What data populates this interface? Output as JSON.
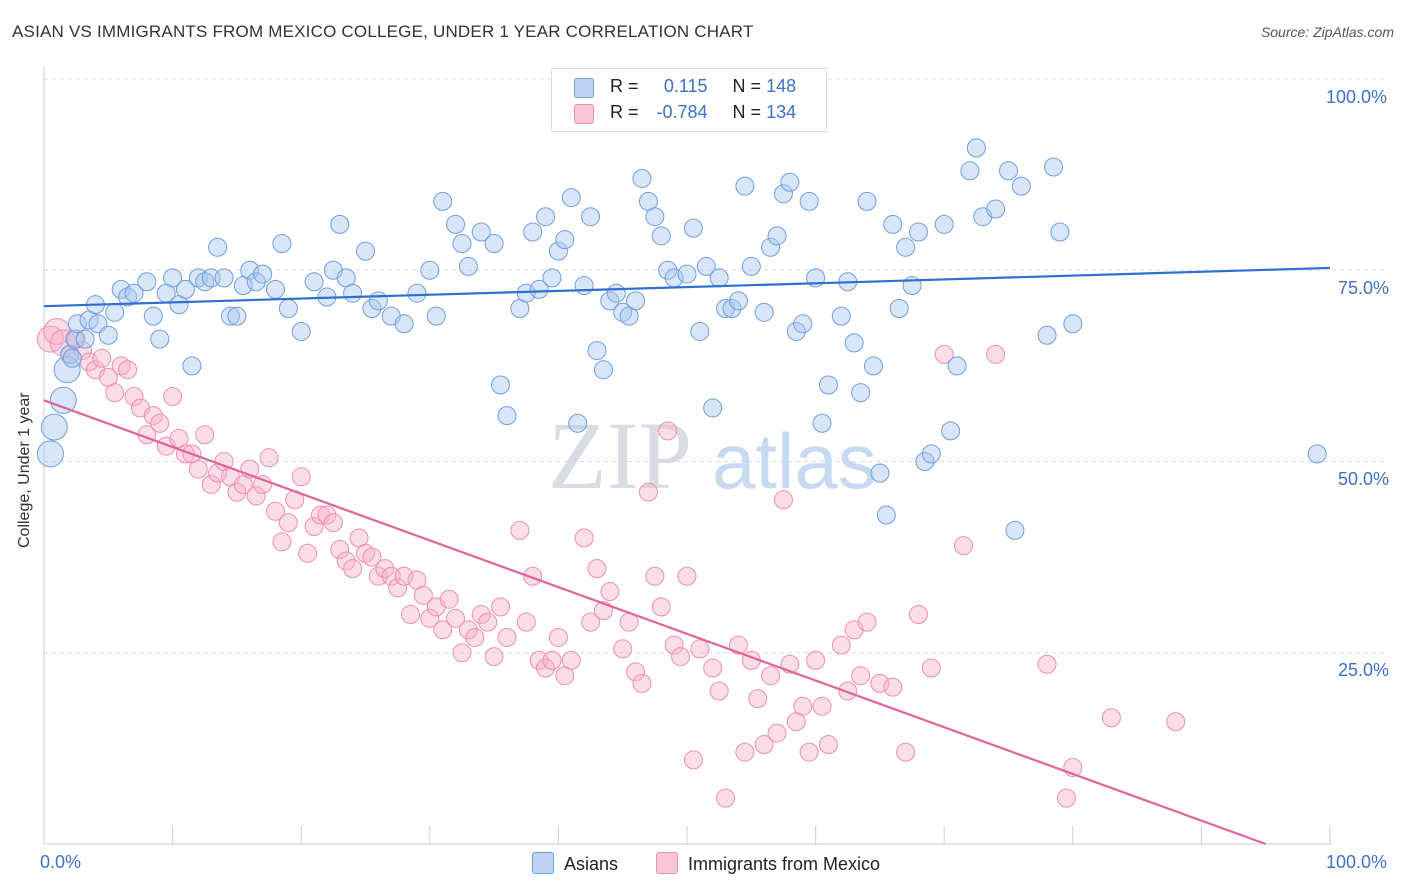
{
  "title": "ASIAN VS IMMIGRANTS FROM MEXICO COLLEGE, UNDER 1 YEAR CORRELATION CHART",
  "source": "Source: ZipAtlas.com",
  "watermark": {
    "zip": "ZIP",
    "atlas": "atlas"
  },
  "legend": {
    "r_label": "R =",
    "n_label": "N =",
    "rows": [
      {
        "r_value": "0.115",
        "n_value": "148",
        "color": "#6f9fe0"
      },
      {
        "r_value": "-0.784",
        "n_value": "134",
        "color": "#ef8fb0"
      }
    ]
  },
  "chart_data": {
    "type": "scatter",
    "title": "ASIAN VS IMMIGRANTS FROM MEXICO COLLEGE, UNDER 1 YEAR CORRELATION CHART",
    "xlabel": "",
    "ylabel": "College, Under 1 year",
    "xlim": [
      0,
      100
    ],
    "ylim": [
      0,
      100
    ],
    "x_tick_labels": [
      "0.0%",
      "100.0%"
    ],
    "y_tick_labels": [
      "100.0%",
      "75.0%",
      "50.0%",
      "25.0%"
    ],
    "y_tick_values": [
      100,
      75,
      50,
      25
    ],
    "grid": true,
    "series": [
      {
        "name": "Asians",
        "color": "#6f9fe0",
        "line_color": "#2f6fd0",
        "trend": {
          "x": [
            0,
            100
          ],
          "y": [
            70.3,
            75.3
          ]
        },
        "points": [
          [
            0.5,
            51
          ],
          [
            0.8,
            54.5
          ],
          [
            1.5,
            58
          ],
          [
            1.8,
            62
          ],
          [
            2,
            64
          ],
          [
            2.2,
            63.5
          ],
          [
            2.4,
            66
          ],
          [
            2.6,
            68
          ],
          [
            3.2,
            66
          ],
          [
            3.5,
            68.5
          ],
          [
            4,
            70.5
          ],
          [
            4.2,
            68
          ],
          [
            5,
            66.5
          ],
          [
            5.5,
            69.5
          ],
          [
            6,
            72.5
          ],
          [
            6.5,
            71.5
          ],
          [
            7,
            72
          ],
          [
            8,
            73.5
          ],
          [
            8.5,
            69
          ],
          [
            9,
            66
          ],
          [
            9.5,
            72
          ],
          [
            10,
            74
          ],
          [
            10.5,
            70.5
          ],
          [
            11,
            72.5
          ],
          [
            11.5,
            62.5
          ],
          [
            12,
            74
          ],
          [
            12.5,
            73.5
          ],
          [
            13,
            74
          ],
          [
            13.5,
            78
          ],
          [
            14,
            74
          ],
          [
            14.5,
            69
          ],
          [
            15,
            69
          ],
          [
            15.5,
            73
          ],
          [
            16,
            75
          ],
          [
            16.5,
            73.5
          ],
          [
            17,
            74.5
          ],
          [
            18,
            72.5
          ],
          [
            18.5,
            78.5
          ],
          [
            19,
            70
          ],
          [
            20,
            67
          ],
          [
            21,
            73.5
          ],
          [
            22,
            71.5
          ],
          [
            22.5,
            75
          ],
          [
            23,
            81
          ],
          [
            23.5,
            74
          ],
          [
            24,
            72
          ],
          [
            25,
            77.5
          ],
          [
            25.5,
            70
          ],
          [
            26,
            71
          ],
          [
            27,
            69
          ],
          [
            28,
            68
          ],
          [
            29,
            72
          ],
          [
            30,
            75
          ],
          [
            30.5,
            69
          ],
          [
            31,
            84
          ],
          [
            32,
            81
          ],
          [
            32.5,
            78.5
          ],
          [
            33,
            75.5
          ],
          [
            34,
            80
          ],
          [
            35,
            78.5
          ],
          [
            35.5,
            60
          ],
          [
            36,
            56
          ],
          [
            37,
            70
          ],
          [
            37.5,
            72
          ],
          [
            38,
            80
          ],
          [
            38.5,
            72.5
          ],
          [
            39,
            82
          ],
          [
            39.5,
            74
          ],
          [
            40,
            77.5
          ],
          [
            40.5,
            79
          ],
          [
            41,
            84.5
          ],
          [
            41.5,
            55
          ],
          [
            42,
            73
          ],
          [
            42.5,
            82
          ],
          [
            43,
            64.5
          ],
          [
            43.5,
            62
          ],
          [
            44,
            71
          ],
          [
            44.5,
            72
          ],
          [
            45,
            69.5
          ],
          [
            45.5,
            69
          ],
          [
            46,
            71
          ],
          [
            46.5,
            87
          ],
          [
            47,
            84
          ],
          [
            47.5,
            82
          ],
          [
            48,
            79.5
          ],
          [
            48.5,
            75
          ],
          [
            49,
            74
          ],
          [
            50,
            74.5
          ],
          [
            50.5,
            80.5
          ],
          [
            51,
            67
          ],
          [
            51.5,
            75.5
          ],
          [
            52,
            57
          ],
          [
            52.5,
            74
          ],
          [
            53,
            70
          ],
          [
            53.5,
            70
          ],
          [
            54,
            71
          ],
          [
            54.5,
            86
          ],
          [
            55,
            75.5
          ],
          [
            56,
            69.5
          ],
          [
            56.5,
            78
          ],
          [
            57,
            79.5
          ],
          [
            57.5,
            85
          ],
          [
            58,
            86.5
          ],
          [
            58.5,
            67
          ],
          [
            59,
            68
          ],
          [
            59.5,
            84
          ],
          [
            60,
            74
          ],
          [
            60.5,
            55
          ],
          [
            61,
            60
          ],
          [
            62,
            69
          ],
          [
            62.5,
            73.5
          ],
          [
            63,
            65.5
          ],
          [
            63.5,
            59
          ],
          [
            64,
            84
          ],
          [
            64.5,
            62.5
          ],
          [
            65,
            48.5
          ],
          [
            65.5,
            43
          ],
          [
            66,
            81
          ],
          [
            66.5,
            70
          ],
          [
            67,
            78
          ],
          [
            67.5,
            73
          ],
          [
            68,
            80
          ],
          [
            68.5,
            50
          ],
          [
            69,
            51
          ],
          [
            70,
            81
          ],
          [
            70.5,
            54
          ],
          [
            71,
            62.5
          ],
          [
            72,
            88
          ],
          [
            72.5,
            91
          ],
          [
            73,
            82
          ],
          [
            74,
            83
          ],
          [
            75,
            88
          ],
          [
            75.5,
            41
          ],
          [
            76,
            86
          ],
          [
            78,
            66.5
          ],
          [
            78.5,
            88.5
          ],
          [
            79,
            80
          ],
          [
            80,
            68
          ],
          [
            99,
            51
          ]
        ]
      },
      {
        "name": "Immigrants from Mexico",
        "color": "#ef8fb0",
        "line_color": "#e0659a",
        "trend": {
          "x": [
            0,
            95
          ],
          "y": [
            58,
            0
          ]
        },
        "points": [
          [
            0.5,
            66
          ],
          [
            1,
            67
          ],
          [
            1.5,
            65.5
          ],
          [
            2,
            64
          ],
          [
            2.5,
            66
          ],
          [
            3,
            64.5
          ],
          [
            3.5,
            63
          ],
          [
            4,
            62
          ],
          [
            4.5,
            63.5
          ],
          [
            5,
            61
          ],
          [
            5.5,
            59
          ],
          [
            6,
            62.5
          ],
          [
            6.5,
            62
          ],
          [
            7,
            58.5
          ],
          [
            7.5,
            57
          ],
          [
            8,
            53.5
          ],
          [
            8.5,
            56
          ],
          [
            9,
            55
          ],
          [
            9.5,
            52
          ],
          [
            10,
            58.5
          ],
          [
            10.5,
            53
          ],
          [
            11,
            51
          ],
          [
            11.5,
            51
          ],
          [
            12,
            49
          ],
          [
            12.5,
            53.5
          ],
          [
            13,
            47
          ],
          [
            13.5,
            48.5
          ],
          [
            14,
            50
          ],
          [
            14.5,
            48
          ],
          [
            15,
            46
          ],
          [
            15.5,
            47
          ],
          [
            16,
            49
          ],
          [
            16.5,
            45.5
          ],
          [
            17,
            47
          ],
          [
            17.5,
            50.5
          ],
          [
            18,
            43.5
          ],
          [
            18.5,
            39.5
          ],
          [
            19,
            42
          ],
          [
            19.5,
            45
          ],
          [
            20,
            48
          ],
          [
            20.5,
            38
          ],
          [
            21,
            41.5
          ],
          [
            21.5,
            43
          ],
          [
            22,
            43
          ],
          [
            22.5,
            42
          ],
          [
            23,
            38.5
          ],
          [
            23.5,
            37
          ],
          [
            24,
            36
          ],
          [
            24.5,
            40
          ],
          [
            25,
            38
          ],
          [
            25.5,
            37.5
          ],
          [
            26,
            35
          ],
          [
            26.5,
            36
          ],
          [
            27,
            35
          ],
          [
            27.5,
            33.5
          ],
          [
            28,
            35
          ],
          [
            28.5,
            30
          ],
          [
            29,
            34.5
          ],
          [
            29.5,
            32.5
          ],
          [
            30,
            29.5
          ],
          [
            30.5,
            31
          ],
          [
            31,
            28
          ],
          [
            31.5,
            32
          ],
          [
            32,
            29.5
          ],
          [
            32.5,
            25
          ],
          [
            33,
            28
          ],
          [
            33.5,
            27
          ],
          [
            34,
            30
          ],
          [
            34.5,
            29
          ],
          [
            35,
            24.5
          ],
          [
            35.5,
            31
          ],
          [
            36,
            27
          ],
          [
            37,
            41
          ],
          [
            37.5,
            29
          ],
          [
            38,
            35
          ],
          [
            38.5,
            24
          ],
          [
            39,
            23
          ],
          [
            39.5,
            24
          ],
          [
            40,
            27
          ],
          [
            40.5,
            22
          ],
          [
            41,
            24
          ],
          [
            42,
            40
          ],
          [
            42.5,
            29
          ],
          [
            43,
            36
          ],
          [
            43.5,
            30.5
          ],
          [
            44,
            33
          ],
          [
            45,
            25.5
          ],
          [
            45.5,
            29
          ],
          [
            46,
            22.5
          ],
          [
            46.5,
            21
          ],
          [
            47,
            46
          ],
          [
            47.5,
            35
          ],
          [
            48,
            31
          ],
          [
            48.5,
            54
          ],
          [
            49,
            26
          ],
          [
            49.5,
            24.5
          ],
          [
            50,
            35
          ],
          [
            50.5,
            11
          ],
          [
            51,
            25.5
          ],
          [
            52,
            23
          ],
          [
            52.5,
            20
          ],
          [
            53,
            6
          ],
          [
            54,
            26
          ],
          [
            54.5,
            12
          ],
          [
            55,
            24
          ],
          [
            55.5,
            19
          ],
          [
            56,
            13
          ],
          [
            56.5,
            22
          ],
          [
            57,
            14.5
          ],
          [
            57.5,
            45
          ],
          [
            58,
            23.5
          ],
          [
            58.5,
            16
          ],
          [
            59,
            18
          ],
          [
            59.5,
            12
          ],
          [
            60,
            24
          ],
          [
            60.5,
            18
          ],
          [
            61,
            13
          ],
          [
            62,
            26
          ],
          [
            62.5,
            20
          ],
          [
            63,
            28
          ],
          [
            63.5,
            22
          ],
          [
            64,
            29
          ],
          [
            65,
            21
          ],
          [
            66,
            20.5
          ],
          [
            67,
            12
          ],
          [
            68,
            30
          ],
          [
            69,
            23
          ],
          [
            70,
            64
          ],
          [
            71.5,
            39
          ],
          [
            74,
            64
          ],
          [
            78,
            23.5
          ],
          [
            79.5,
            6
          ],
          [
            80,
            10
          ],
          [
            83,
            16.5
          ],
          [
            88,
            16
          ]
        ]
      }
    ]
  },
  "bottom_legend": [
    "Asians",
    "Immigrants from Mexico"
  ]
}
